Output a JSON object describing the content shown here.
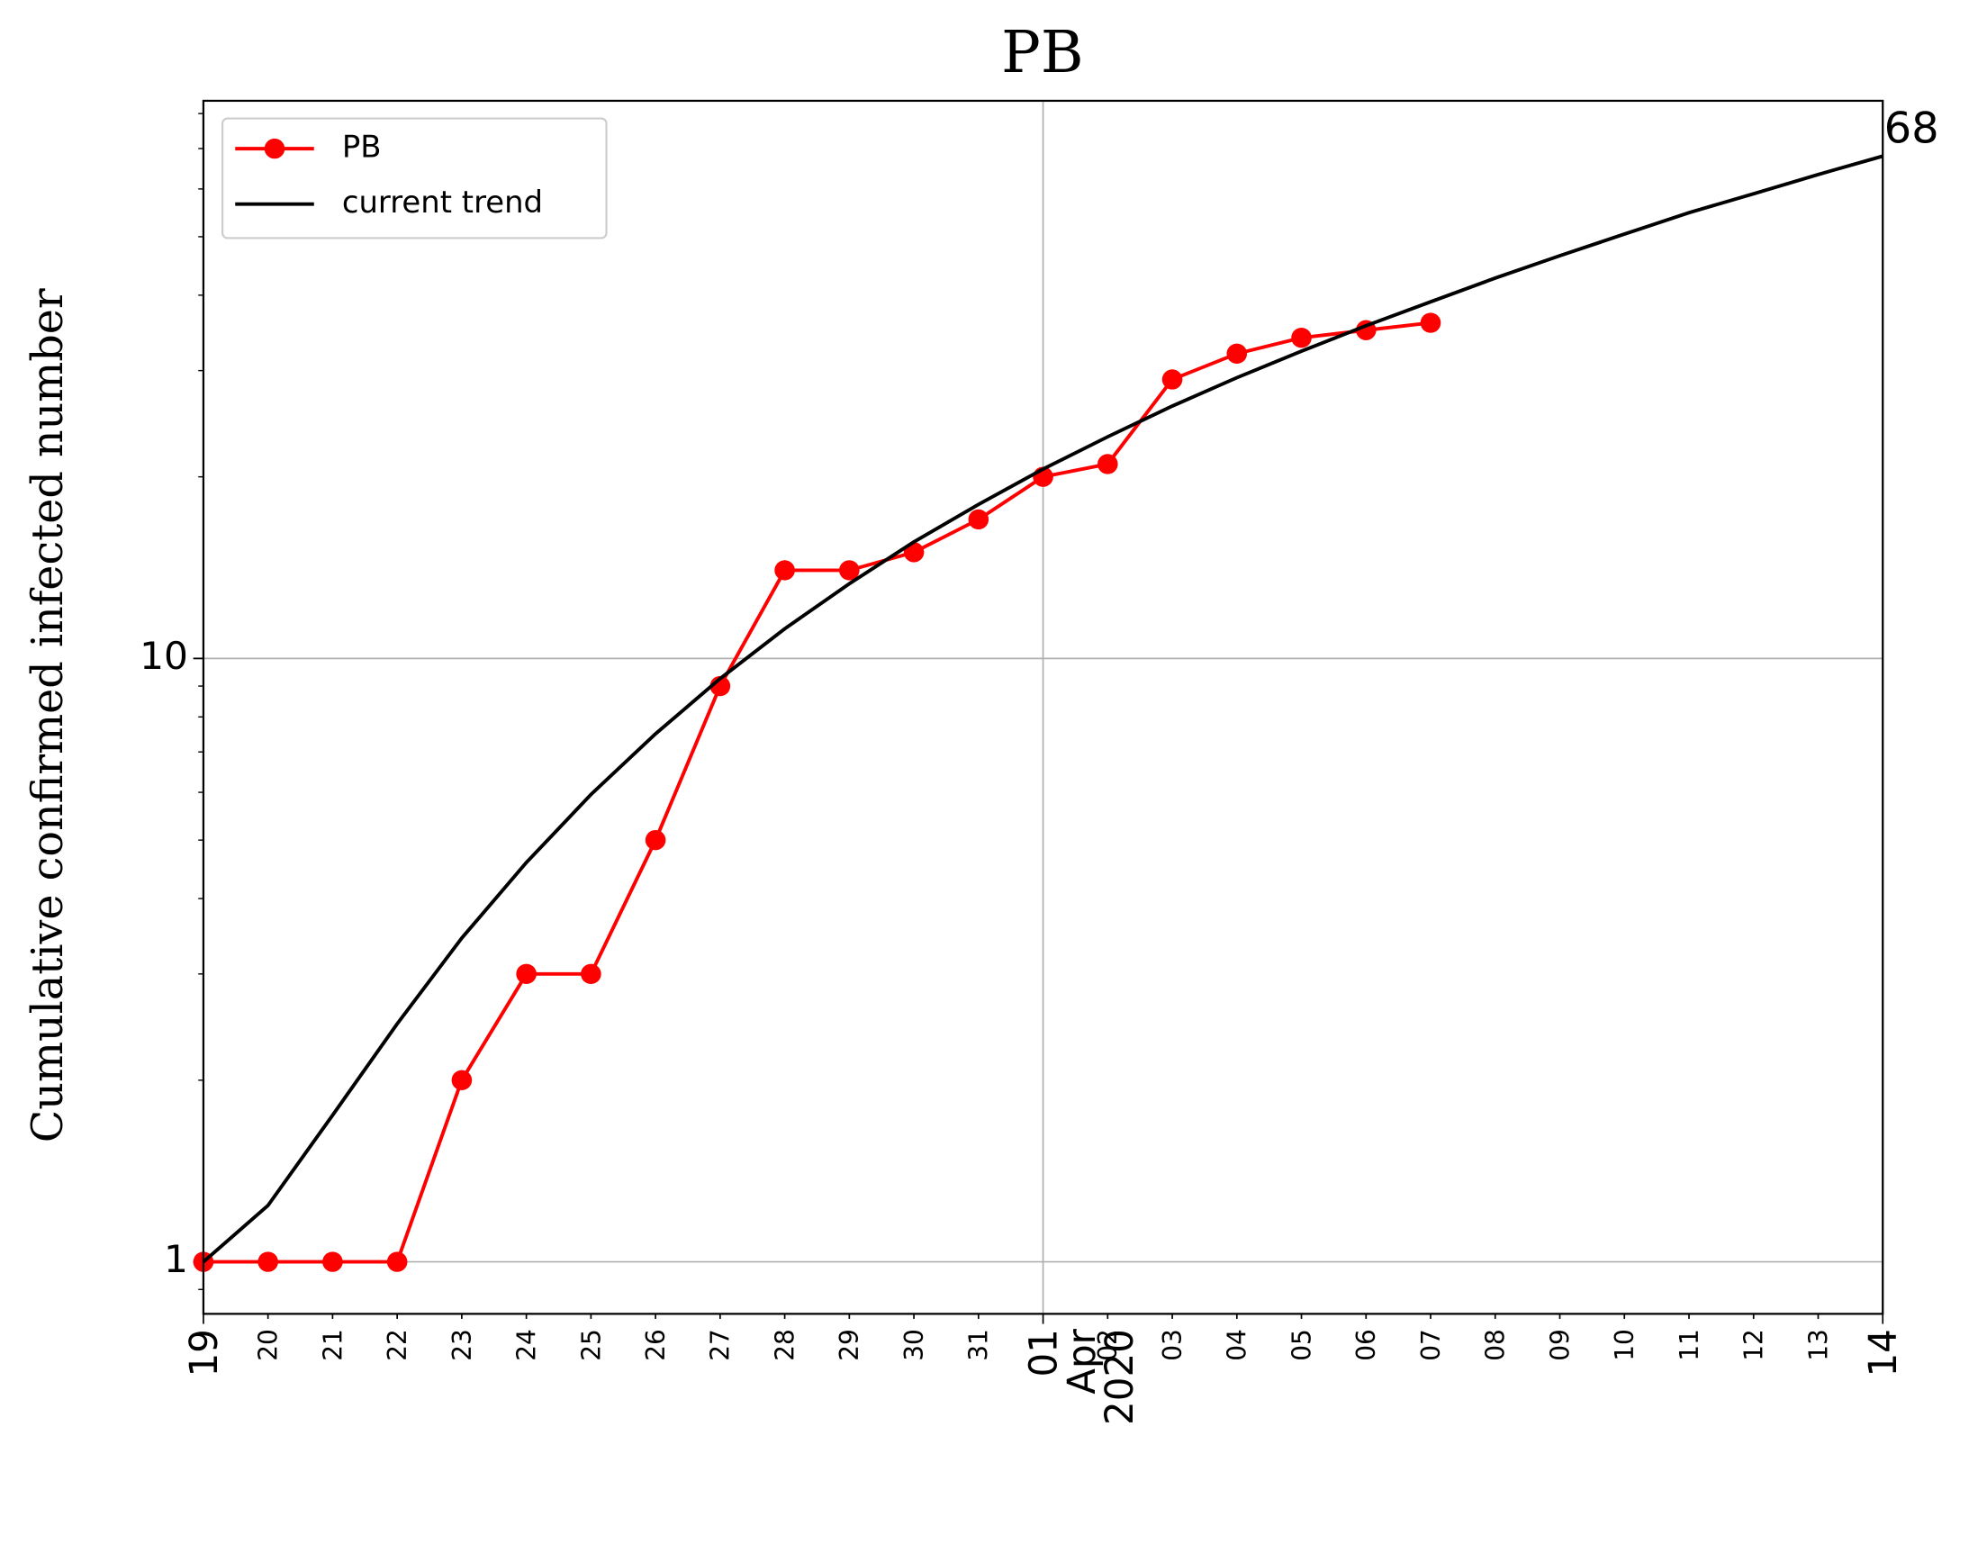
{
  "chart_data": {
    "type": "line",
    "title": "PB",
    "y_label": "Cumulative confirmed infected number",
    "categories": [
      "19",
      "20",
      "21",
      "22",
      "23",
      "24",
      "25",
      "26",
      "27",
      "28",
      "29",
      "30",
      "31",
      "01\nApr\n2020",
      "02",
      "03",
      "04",
      "05",
      "06",
      "07",
      "08",
      "09",
      "10",
      "11",
      "12",
      "13",
      "14"
    ],
    "xmajor_index": [
      0,
      13,
      26
    ],
    "series": [
      {
        "name": "PB",
        "color": "#ff0000",
        "marker": "circle",
        "values": [
          1,
          1,
          1,
          1,
          2,
          3,
          3,
          5,
          9,
          14,
          14,
          15,
          17,
          20,
          21,
          29,
          32,
          34,
          35,
          36,
          null,
          null,
          null,
          null,
          null,
          null,
          null
        ]
      },
      {
        "name": "current trend",
        "color": "#000000",
        "marker": "none",
        "values": [
          1,
          1.24,
          1.75,
          2.48,
          3.44,
          4.59,
          5.95,
          7.5,
          9.26,
          11.2,
          13.3,
          15.6,
          18.0,
          20.6,
          23.3,
          26.2,
          29.2,
          32.3,
          35.6,
          39.0,
          42.7,
          46.5,
          50.5,
          54.8,
          58.9,
          63.4,
          68
        ]
      }
    ],
    "annotation": "68",
    "log_y": true,
    "ylim": [
      0.82,
      84
    ],
    "yticks": [
      1,
      10
    ],
    "yminorticks": [
      0.9,
      2,
      3,
      4,
      5,
      6,
      7,
      8,
      9,
      20,
      30,
      40,
      50,
      60,
      70,
      80
    ],
    "grid": true,
    "legend": "upper left"
  }
}
